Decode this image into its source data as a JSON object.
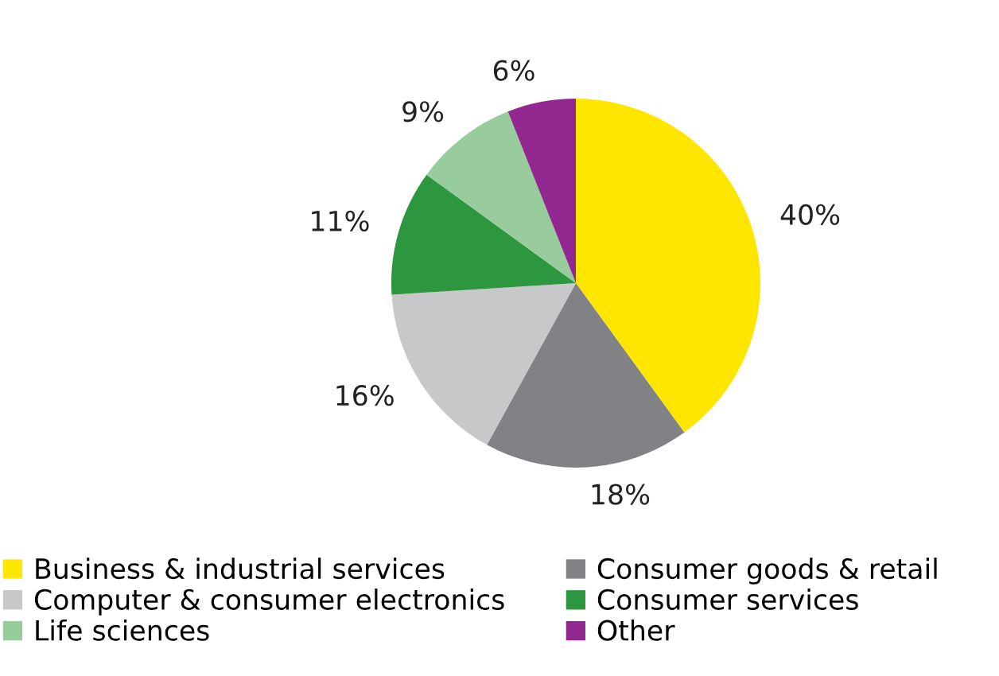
{
  "chart_data": {
    "type": "pie",
    "categories": [
      "Business & industrial services",
      "Consumer goods & retail",
      "Computer & consumer electronics",
      "Consumer services",
      "Life sciences",
      "Other"
    ],
    "values": [
      40,
      18,
      16,
      11,
      9,
      6
    ],
    "value_labels": [
      "40%",
      "18%",
      "16%",
      "11%",
      "9%",
      "6%"
    ],
    "colors": [
      "#ffe600",
      "#808285",
      "#c8c8ca",
      "#2c973e",
      "#99cc9d",
      "#91278f"
    ],
    "legend": "bottom"
  }
}
